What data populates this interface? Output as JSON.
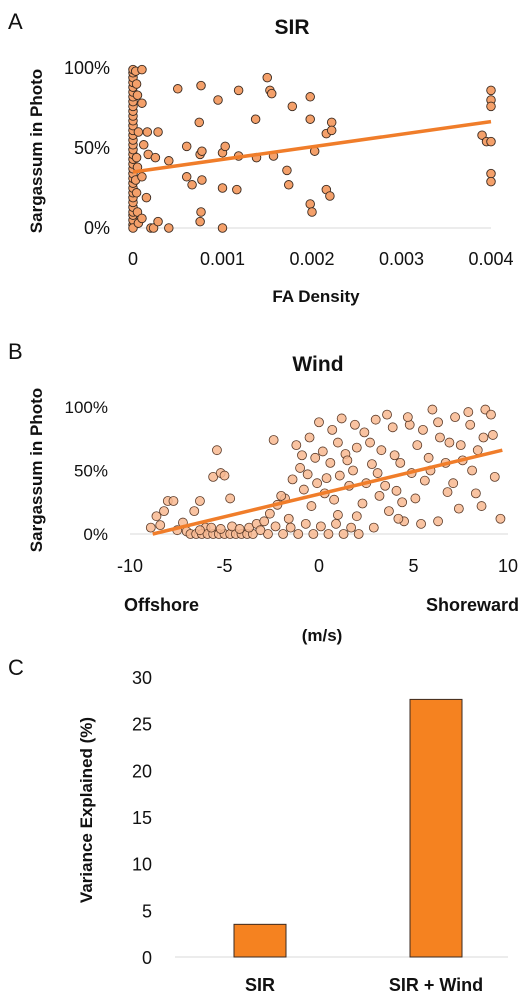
{
  "chart_data": [
    {
      "panel": "A",
      "type": "scatter",
      "title": "SIR",
      "xlabel": "FA Density",
      "ylabel": "Sargassum in Photo",
      "xlim": [
        0,
        0.004
      ],
      "ylim": [
        0,
        1
      ],
      "x_ticks": [
        "0",
        "0.001",
        "0.002",
        "0.003",
        "0.004"
      ],
      "y_ticks": [
        "0%",
        "50%",
        "100%"
      ],
      "marker_color": "#f4a06a",
      "line_color": "#f07d2a",
      "trendline": {
        "x": [
          0,
          0.004
        ],
        "y": [
          0.35,
          0.665
        ]
      },
      "points": [
        [
          0,
          0.02
        ],
        [
          0,
          0.05
        ],
        [
          0,
          0.08
        ],
        [
          0,
          0.1
        ],
        [
          0,
          0.13
        ],
        [
          0,
          0.16
        ],
        [
          0,
          0.19
        ],
        [
          0,
          0.22
        ],
        [
          0,
          0.25
        ],
        [
          0,
          0.28
        ],
        [
          0,
          0.31
        ],
        [
          0,
          0.34
        ],
        [
          0,
          0.37
        ],
        [
          0,
          0.4
        ],
        [
          0,
          0.43
        ],
        [
          0,
          0.46
        ],
        [
          0,
          0.49
        ],
        [
          0,
          0.52
        ],
        [
          0,
          0.55
        ],
        [
          0,
          0.58
        ],
        [
          0,
          0.61
        ],
        [
          0,
          0.64
        ],
        [
          0,
          0.67
        ],
        [
          0,
          0.7
        ],
        [
          0,
          0.73
        ],
        [
          0,
          0.76
        ],
        [
          0,
          0.79
        ],
        [
          0,
          0.82
        ],
        [
          0,
          0.85
        ],
        [
          0,
          0.88
        ],
        [
          0,
          0.91
        ],
        [
          0,
          0.94
        ],
        [
          0,
          0.97
        ],
        [
          0,
          0.99
        ],
        [
          0,
          0.0
        ],
        [
          3e-05,
          0.98
        ],
        [
          4e-05,
          0.9
        ],
        [
          5e-05,
          0.83
        ],
        [
          6e-05,
          0.6
        ],
        [
          4e-05,
          0.44
        ],
        [
          5e-05,
          0.38
        ],
        [
          3e-05,
          0.3
        ],
        [
          4e-05,
          0.22
        ],
        [
          5e-05,
          0.1
        ],
        [
          6e-05,
          0.03
        ],
        [
          0.0001,
          0.99
        ],
        [
          0.0001,
          0.78
        ],
        [
          0.00012,
          0.52
        ],
        [
          0.0001,
          0.32
        ],
        [
          0.0001,
          0.06
        ],
        [
          0.00016,
          0.6
        ],
        [
          0.00017,
          0.46
        ],
        [
          0.00015,
          0.19
        ],
        [
          0.0002,
          0.0
        ],
        [
          0.00023,
          0.0
        ],
        [
          0.00025,
          0.44
        ],
        [
          0.00028,
          0.6
        ],
        [
          0.00028,
          0.04
        ],
        [
          0.0004,
          0.42
        ],
        [
          0.0004,
          0.0
        ],
        [
          0.0005,
          0.87
        ],
        [
          0.0006,
          0.51
        ],
        [
          0.0006,
          0.32
        ],
        [
          0.00066,
          0.27
        ],
        [
          0.00074,
          0.66
        ],
        [
          0.00075,
          0.46
        ],
        [
          0.00076,
          0.89
        ],
        [
          0.00076,
          0.1
        ],
        [
          0.00075,
          0.04
        ],
        [
          0.00077,
          0.3
        ],
        [
          0.00077,
          0.48
        ],
        [
          0.00095,
          0.8
        ],
        [
          0.001,
          0.47
        ],
        [
          0.001,
          0.25
        ],
        [
          0.001,
          0.0
        ],
        [
          0.00103,
          0.51
        ],
        [
          0.00116,
          0.24
        ],
        [
          0.00118,
          0.45
        ],
        [
          0.00118,
          0.86
        ],
        [
          0.00137,
          0.68
        ],
        [
          0.00138,
          0.44
        ],
        [
          0.0015,
          0.94
        ],
        [
          0.00153,
          0.86
        ],
        [
          0.00155,
          0.84
        ],
        [
          0.00157,
          0.45
        ],
        [
          0.00172,
          0.36
        ],
        [
          0.00174,
          0.27
        ],
        [
          0.00178,
          0.76
        ],
        [
          0.00198,
          0.82
        ],
        [
          0.00198,
          0.68
        ],
        [
          0.00198,
          0.15
        ],
        [
          0.002,
          0.1
        ],
        [
          0.00203,
          0.48
        ],
        [
          0.00216,
          0.59
        ],
        [
          0.00216,
          0.24
        ],
        [
          0.0022,
          0.2
        ],
        [
          0.00222,
          0.66
        ],
        [
          0.00222,
          0.61
        ],
        [
          0.0039,
          0.58
        ],
        [
          0.00395,
          0.54
        ],
        [
          0.004,
          0.86
        ],
        [
          0.004,
          0.8
        ],
        [
          0.004,
          0.76
        ],
        [
          0.004,
          0.54
        ],
        [
          0.004,
          0.34
        ],
        [
          0.004,
          0.29
        ]
      ]
    },
    {
      "panel": "B",
      "type": "scatter",
      "title": "Wind",
      "xlabel": "(m/s)",
      "xlabel_left": "Offshore",
      "xlabel_right": "Shoreward",
      "ylabel": "Sargassum in Photo",
      "xlim": [
        -10,
        10
      ],
      "ylim": [
        0,
        1
      ],
      "x_ticks": [
        "-10",
        "-5",
        "0",
        "5",
        "10"
      ],
      "y_ticks": [
        "0%",
        "50%",
        "100%"
      ],
      "marker_color": "#f8b891",
      "line_color": "#f07d2a",
      "trendline": {
        "x": [
          -8.8,
          9.7
        ],
        "y": [
          0.0,
          0.66
        ]
      },
      "points": [
        [
          -8.9,
          0.05
        ],
        [
          -8.6,
          0.14
        ],
        [
          -8.4,
          0.07
        ],
        [
          -8.2,
          0.18
        ],
        [
          -8.0,
          0.26
        ],
        [
          -7.7,
          0.26
        ],
        [
          -7.5,
          0.03
        ],
        [
          -7.2,
          0.09
        ],
        [
          -7.0,
          0.02
        ],
        [
          -6.6,
          0.18
        ],
        [
          -6.3,
          0.26
        ],
        [
          -6.0,
          0.05
        ],
        [
          -5.6,
          0.45
        ],
        [
          -5.4,
          0.66
        ],
        [
          -5.2,
          0.48
        ],
        [
          -5.0,
          0.46
        ],
        [
          -4.7,
          0.28
        ],
        [
          -6.8,
          0.0
        ],
        [
          -6.5,
          0.0
        ],
        [
          -6.2,
          0.0
        ],
        [
          -5.9,
          0.0
        ],
        [
          -5.6,
          0.0
        ],
        [
          -5.3,
          0.0
        ],
        [
          -5.0,
          0.0
        ],
        [
          -4.7,
          0.0
        ],
        [
          -4.4,
          0.0
        ],
        [
          -4.1,
          0.0
        ],
        [
          -3.8,
          0.0
        ],
        [
          -3.5,
          0.0
        ],
        [
          -6.3,
          0.03
        ],
        [
          -5.7,
          0.05
        ],
        [
          -5.2,
          0.04
        ],
        [
          -4.6,
          0.06
        ],
        [
          -4.2,
          0.04
        ],
        [
          -3.7,
          0.05
        ],
        [
          -3.3,
          0.08
        ],
        [
          -2.9,
          0.1
        ],
        [
          -2.6,
          0.16
        ],
        [
          -2.2,
          0.23
        ],
        [
          -1.8,
          0.28
        ],
        [
          -1.4,
          0.43
        ],
        [
          -1.0,
          0.52
        ],
        [
          -0.6,
          0.47
        ],
        [
          -0.2,
          0.6
        ],
        [
          0.2,
          0.65
        ],
        [
          0.6,
          0.56
        ],
        [
          1.0,
          0.72
        ],
        [
          1.4,
          0.63
        ],
        [
          1.8,
          0.5
        ],
        [
          -2.4,
          0.74
        ],
        [
          -2.0,
          0.3
        ],
        [
          -1.6,
          0.12
        ],
        [
          -1.2,
          0.7
        ],
        [
          -0.8,
          0.35
        ],
        [
          -0.4,
          0.22
        ],
        [
          0.0,
          0.88
        ],
        [
          0.4,
          0.44
        ],
        [
          0.8,
          0.27
        ],
        [
          1.2,
          0.91
        ],
        [
          1.6,
          0.38
        ],
        [
          2.0,
          0.14
        ],
        [
          2.4,
          0.8
        ],
        [
          2.8,
          0.55
        ],
        [
          3.2,
          0.3
        ],
        [
          3.6,
          0.94
        ],
        [
          4.0,
          0.62
        ],
        [
          4.4,
          0.25
        ],
        [
          4.8,
          0.86
        ],
        [
          5.2,
          0.7
        ],
        [
          5.6,
          0.42
        ],
        [
          6.0,
          0.98
        ],
        [
          6.4,
          0.76
        ],
        [
          6.8,
          0.33
        ],
        [
          7.2,
          0.92
        ],
        [
          7.6,
          0.58
        ],
        [
          8.0,
          0.86
        ],
        [
          8.4,
          0.66
        ],
        [
          8.8,
          0.98
        ],
        [
          9.2,
          0.78
        ],
        [
          9.6,
          0.12
        ],
        [
          9.3,
          0.45
        ],
        [
          8.6,
          0.22
        ],
        [
          8.1,
          0.5
        ],
        [
          7.4,
          0.2
        ],
        [
          6.9,
          0.72
        ],
        [
          6.3,
          0.1
        ],
        [
          5.8,
          0.6
        ],
        [
          5.4,
          0.08
        ],
        [
          4.9,
          0.48
        ],
        [
          4.5,
          0.1
        ],
        [
          4.1,
          0.34
        ],
        [
          3.7,
          0.18
        ],
        [
          3.3,
          0.66
        ],
        [
          2.9,
          0.05
        ],
        [
          2.5,
          0.4
        ],
        [
          2.1,
          0.0
        ],
        [
          1.7,
          0.05
        ],
        [
          1.3,
          0.0
        ],
        [
          0.9,
          0.08
        ],
        [
          0.5,
          0.0
        ],
        [
          0.1,
          0.06
        ],
        [
          -0.3,
          0.0
        ],
        [
          -0.7,
          0.08
        ],
        [
          -1.1,
          0.0
        ],
        [
          -1.5,
          0.05
        ],
        [
          -1.9,
          0.0
        ],
        [
          -2.3,
          0.06
        ],
        [
          -2.7,
          0.0
        ],
        [
          -3.1,
          0.03
        ],
        [
          -0.9,
          0.62
        ],
        [
          -0.5,
          0.76
        ],
        [
          -0.1,
          0.4
        ],
        [
          0.3,
          0.32
        ],
        [
          0.7,
          0.82
        ],
        [
          1.1,
          0.46
        ],
        [
          1.5,
          0.58
        ],
        [
          1.9,
          0.86
        ],
        [
          2.3,
          0.24
        ],
        [
          2.7,
          0.72
        ],
        [
          3.1,
          0.48
        ],
        [
          3.5,
          0.38
        ],
        [
          3.9,
          0.84
        ],
        [
          4.3,
          0.56
        ],
        [
          4.7,
          0.92
        ],
        [
          5.1,
          0.28
        ],
        [
          5.5,
          0.82
        ],
        [
          5.9,
          0.5
        ],
        [
          6.3,
          0.88
        ],
        [
          6.7,
          0.56
        ],
        [
          7.1,
          0.4
        ],
        [
          7.5,
          0.7
        ],
        [
          7.9,
          0.96
        ],
        [
          8.3,
          0.32
        ],
        [
          8.7,
          0.76
        ],
        [
          9.1,
          0.94
        ],
        [
          4.2,
          0.12
        ],
        [
          3.0,
          0.9
        ],
        [
          2.0,
          0.68
        ],
        [
          1.0,
          0.15
        ]
      ]
    },
    {
      "panel": "C",
      "type": "bar",
      "ylabel": "Variance Explained (%)",
      "categories": [
        "SIR",
        "SIR + Wind"
      ],
      "values": [
        3.5,
        27.6
      ],
      "ylim": [
        0,
        30
      ],
      "y_ticks": [
        "0",
        "5",
        "10",
        "15",
        "20",
        "25",
        "30"
      ],
      "bar_color": "#f58220"
    }
  ]
}
